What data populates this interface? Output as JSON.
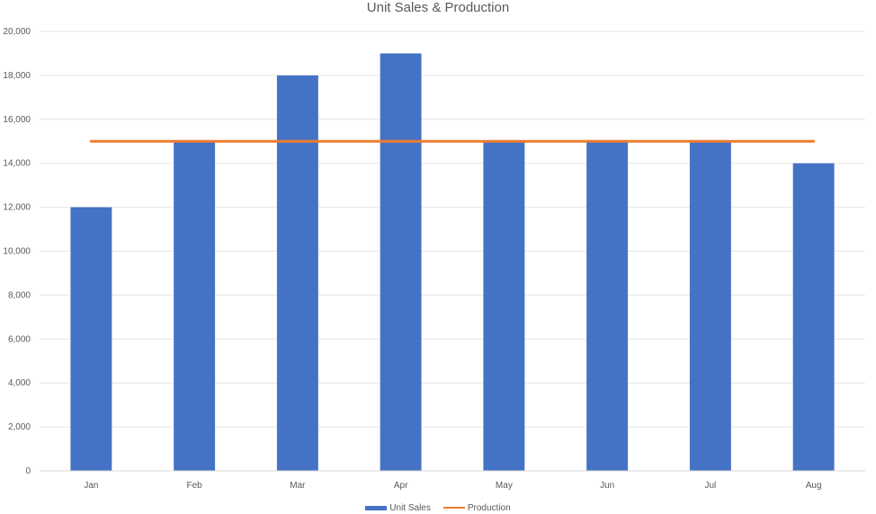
{
  "chart_data": {
    "type": "bar",
    "title": "Unit Sales & Production",
    "xlabel": "",
    "ylabel": "",
    "categories": [
      "Jan",
      "Feb",
      "Mar",
      "Apr",
      "May",
      "Jun",
      "Jul",
      "Aug"
    ],
    "series": [
      {
        "name": "Unit Sales",
        "kind": "bar",
        "color": "#4472C4",
        "values": [
          12000,
          15000,
          18000,
          19000,
          15000,
          15000,
          15000,
          14000
        ]
      },
      {
        "name": "Production",
        "kind": "line",
        "color": "#ED7D31",
        "values": [
          15000,
          15000,
          15000,
          15000,
          15000,
          15000,
          15000,
          15000
        ]
      }
    ],
    "ylim": [
      0,
      20000
    ],
    "yticks": [
      0,
      2000,
      4000,
      6000,
      8000,
      10000,
      12000,
      14000,
      16000,
      18000,
      20000
    ],
    "ytick_labels": [
      "0",
      "2,000",
      "4,000",
      "6,000",
      "8,000",
      "10,000",
      "12,000",
      "14,000",
      "16,000",
      "18,000",
      "20,000"
    ],
    "grid": true,
    "legend": "bottom"
  }
}
